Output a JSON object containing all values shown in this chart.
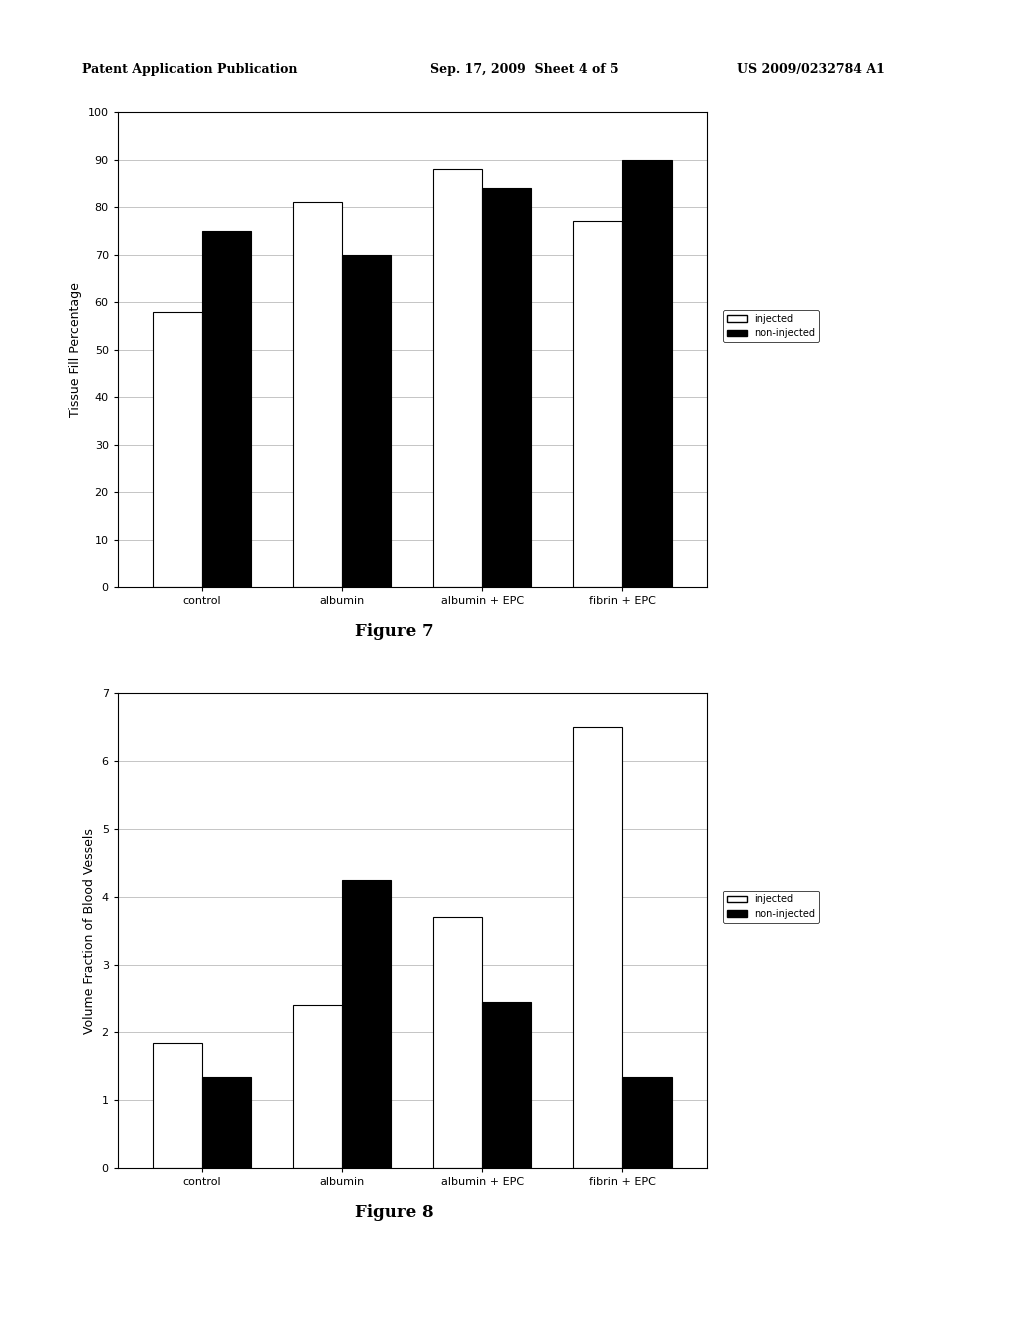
{
  "fig7": {
    "title": "Figure 7",
    "ylabel": "Tissue Fill Percentage",
    "categories": [
      "control",
      "albumin",
      "albumin + EPC",
      "fibrin + EPC"
    ],
    "injected": [
      58,
      81,
      88,
      77
    ],
    "non_injected": [
      75,
      70,
      84,
      90
    ],
    "ylim": [
      0,
      100
    ],
    "yticks": [
      0,
      10,
      20,
      30,
      40,
      50,
      60,
      70,
      80,
      90,
      100
    ]
  },
  "fig8": {
    "title": "Figure 8",
    "ylabel": "Volume Fraction of Blood Vessels",
    "categories": [
      "control",
      "albumin",
      "albumin + EPC",
      "fibrin + EPC"
    ],
    "injected": [
      1.85,
      2.4,
      3.7,
      6.5
    ],
    "non_injected": [
      1.35,
      4.25,
      2.45,
      1.35
    ],
    "ylim": [
      0,
      7
    ],
    "yticks": [
      0,
      1,
      2,
      3,
      4,
      5,
      6,
      7
    ]
  },
  "bar_width": 0.35,
  "injected_color": "#ffffff",
  "non_injected_color": "#000000",
  "injected_edge": "#000000",
  "legend_labels": [
    "injected",
    "non-injected"
  ],
  "header_left": "Patent Application Publication",
  "header_mid": "Sep. 17, 2009  Sheet 4 of 5",
  "header_right": "US 2009/0232784 A1",
  "background_color": "#ffffff",
  "axis_fontsize": 9,
  "tick_fontsize": 8,
  "caption_fontsize": 12
}
